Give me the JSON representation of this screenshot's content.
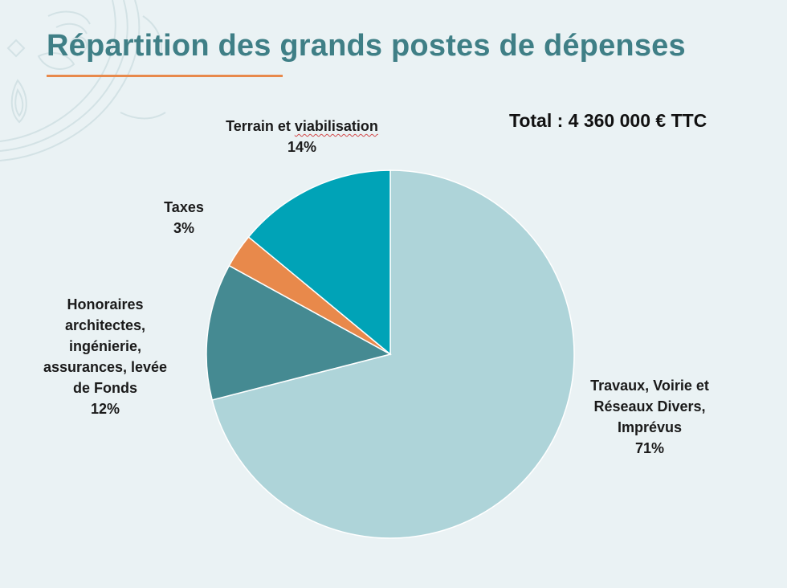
{
  "slide": {
    "title": "Répartition des grands postes de dépenses",
    "total": "Total : 4 360 000 € TTC"
  },
  "colors": {
    "title": "#3f7f86",
    "accent": "#e8894b",
    "background": "#eaf2f4"
  },
  "chart_data": {
    "type": "pie",
    "title": "Répartition des grands postes de dépenses",
    "subtitle": "Total : 4 360 000 € TTC",
    "start_angle_deg": 0,
    "direction": "clockwise",
    "legend": "none",
    "slices": [
      {
        "name": "Travaux, Voirie et Réseaux Divers, Imprévus",
        "label_lines": [
          "Travaux, Voirie et",
          "Réseaux Divers,",
          "Imprévus"
        ],
        "value": 71,
        "label": "71%",
        "color": "#aed4d9"
      },
      {
        "name": "Honoraires architectes, ingénierie, assurances, levée de Fonds",
        "label_lines": [
          "Honoraires",
          "architectes,",
          "ingénierie,",
          "assurances, levée",
          "de Fonds"
        ],
        "value": 12,
        "label": "12%",
        "color": "#458a92"
      },
      {
        "name": "Taxes",
        "label_lines": [
          "Taxes"
        ],
        "value": 3,
        "label": "3%",
        "color": "#e8894b"
      },
      {
        "name": "Terrain et viabilisation",
        "label_lines": [
          "Terrain et viabilisation"
        ],
        "value": 14,
        "label": "14%",
        "color": "#00a3b7"
      }
    ]
  }
}
